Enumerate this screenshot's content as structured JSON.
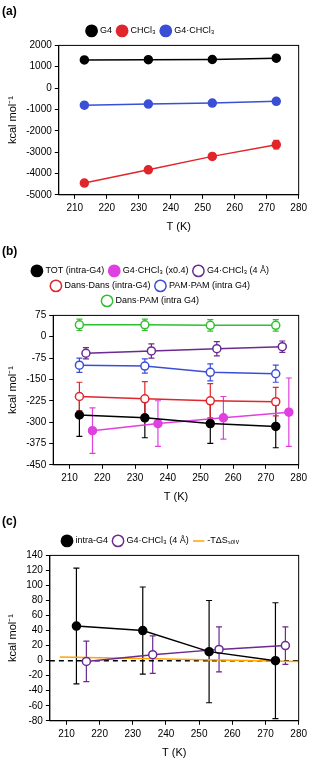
{
  "chart_data": [
    {
      "type": "line",
      "title": "(a)",
      "x_label": "T (K)",
      "y_label": "kcal mol⁻¹",
      "xlim": [
        205,
        280
      ],
      "xticks": [
        210,
        220,
        230,
        240,
        250,
        260,
        270,
        280
      ],
      "ylim": [
        -5000,
        2000
      ],
      "yticks": [
        -5000,
        -4000,
        -3000,
        -2000,
        -1000,
        0,
        1000,
        2000
      ],
      "grid": false,
      "legend": "top",
      "series": [
        {
          "name": "G4",
          "color": "#000000",
          "marker": "circle",
          "x": [
            213,
            233,
            253,
            273
          ],
          "values": [
            1320,
            1330,
            1340,
            1400
          ],
          "errors": [
            60,
            60,
            70,
            90
          ]
        },
        {
          "name": "CHCl₃",
          "color": "#e0262b",
          "marker": "circle",
          "x": [
            213,
            233,
            253,
            273
          ],
          "values": [
            -4450,
            -3830,
            -3200,
            -2650
          ],
          "errors": [
            80,
            100,
            130,
            200
          ]
        },
        {
          "name": "G4·CHCl₃",
          "color": "#3a4fd6",
          "marker": "circle",
          "x": [
            213,
            233,
            253,
            273
          ],
          "values": [
            -800,
            -750,
            -700,
            -620
          ],
          "errors": [
            70,
            80,
            90,
            120
          ]
        }
      ]
    },
    {
      "type": "line",
      "title": "(b)",
      "x_label": "T (K)",
      "y_label": "kcal mol⁻¹",
      "xlim": [
        205,
        280
      ],
      "xticks": [
        210,
        220,
        230,
        240,
        250,
        260,
        270,
        280
      ],
      "ylim": [
        -450,
        75
      ],
      "yticks": [
        -450,
        -375,
        -300,
        -225,
        -150,
        -75,
        0,
        75
      ],
      "grid": false,
      "legend": "top",
      "series": [
        {
          "name": "TOT (intra-G4)",
          "color": "#000000",
          "marker": "circle",
          "x": [
            213,
            233,
            253,
            273
          ],
          "values": [
            -275,
            -285,
            -305,
            -315
          ],
          "errors": [
            75,
            70,
            70,
            75
          ]
        },
        {
          "name": "G4·CHCl₃ (x0.4)",
          "color": "#e040e0",
          "marker": "circle",
          "x": [
            217,
            237,
            257,
            277
          ],
          "values": [
            -330,
            -305,
            -285,
            -265
          ],
          "errors": [
            80,
            80,
            75,
            120
          ]
        },
        {
          "name": "G4·CHCl₃ (4 Å)",
          "color": "#6a2a90",
          "marker": "circle_open",
          "x": [
            215,
            235,
            255,
            275
          ],
          "values": [
            -58,
            -50,
            -42,
            -35
          ],
          "errors": [
            20,
            25,
            25,
            20
          ]
        },
        {
          "name": "Dans·Dans (intra-G4)",
          "color": "#e0262b",
          "marker": "circle_open",
          "x": [
            213,
            233,
            253,
            273
          ],
          "values": [
            -210,
            -218,
            -225,
            -228
          ],
          "errors": [
            50,
            60,
            60,
            50
          ]
        },
        {
          "name": "PAM·PAM (intra G4)",
          "color": "#3a4fd6",
          "marker": "circle_open",
          "x": [
            213,
            233,
            253,
            273
          ],
          "values": [
            -100,
            -103,
            -125,
            -130
          ],
          "errors": [
            25,
            25,
            30,
            30
          ]
        },
        {
          "name": "Dans·PAM (intra G4)",
          "color": "#2fc02f",
          "marker": "circle_open",
          "x": [
            213,
            233,
            253,
            273
          ],
          "values": [
            42,
            42,
            40,
            40
          ],
          "errors": [
            20,
            20,
            20,
            20
          ]
        }
      ]
    },
    {
      "type": "line",
      "title": "(c)",
      "x_label": "T (K)",
      "y_label": "kcal mol⁻¹",
      "xlim": [
        205,
        280
      ],
      "xticks": [
        210,
        220,
        230,
        240,
        250,
        260,
        270,
        280
      ],
      "ylim": [
        -80,
        140
      ],
      "yticks": [
        -80,
        -60,
        -40,
        -20,
        0,
        20,
        40,
        60,
        80,
        100,
        120,
        140
      ],
      "grid": false,
      "legend": "top",
      "series": [
        {
          "name": "intra-G4",
          "color": "#000000",
          "marker": "circle",
          "x": [
            213,
            233,
            253,
            273
          ],
          "values": [
            46,
            40,
            12,
            0
          ],
          "errors": [
            77,
            58,
            68,
            77
          ]
        },
        {
          "name": "G4·CHCl₃ (4 Å)",
          "color": "#6a2a90",
          "marker": "circle_open",
          "x": [
            216,
            236,
            256,
            276
          ],
          "values": [
            -1,
            8,
            15,
            20
          ],
          "errors": [
            27,
            25,
            30,
            25
          ]
        },
        {
          "name": "-TΔSₛₒₗᵥ",
          "color": "#ffa500",
          "marker": "none",
          "x": [
            208,
            280
          ],
          "values": [
            5,
            -1
          ]
        },
        {
          "color": "#000000",
          "marker": "none",
          "line_style": "dashed",
          "x": [
            205,
            280
          ],
          "values": [
            0,
            0
          ]
        }
      ]
    }
  ]
}
